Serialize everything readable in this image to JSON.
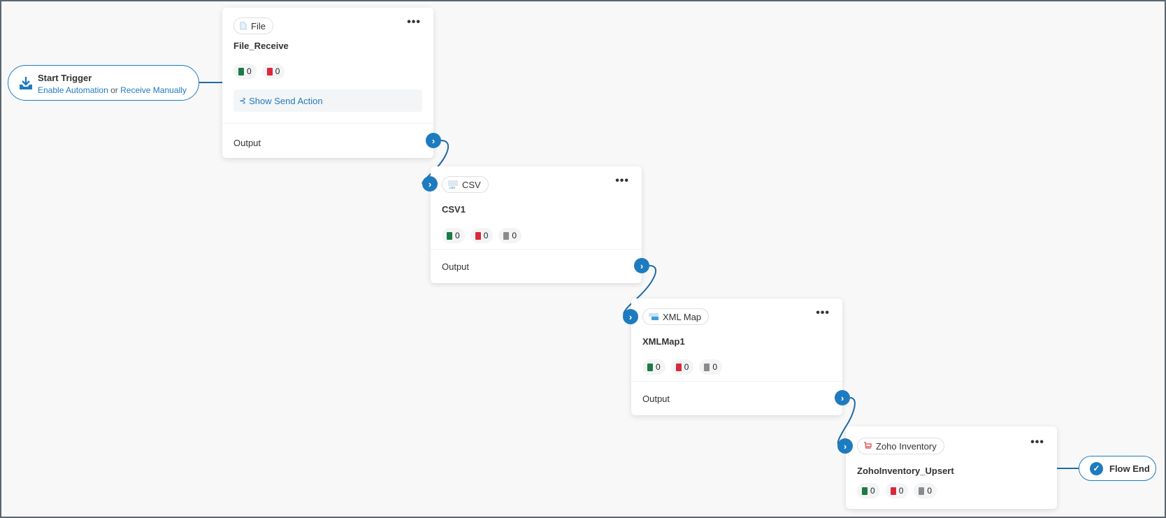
{
  "colors": {
    "accent": "#1e7bbf",
    "success": "#1e7a45",
    "error": "#d9283b",
    "neutral": "#8a8a8a"
  },
  "start_trigger": {
    "title": "Start Trigger",
    "link1": "Enable Automation",
    "sep": "or",
    "link2": "Receive Manually",
    "icon": "download-icon"
  },
  "flow_end": {
    "label": "Flow End",
    "icon": "check-circle-icon"
  },
  "nodes": [
    {
      "type": "File",
      "name": "File_Receive",
      "icon": "file-icon",
      "stats": {
        "success": "0",
        "error": "0"
      },
      "send_action": "Show Send Action",
      "output": "Output"
    },
    {
      "type": "CSV",
      "name": "CSV1",
      "icon": "csv-icon",
      "stats": {
        "success": "0",
        "error": "0",
        "pending": "0"
      },
      "output": "Output"
    },
    {
      "type": "XML Map",
      "name": "XMLMap1",
      "icon": "xml-map-icon",
      "stats": {
        "success": "0",
        "error": "0",
        "pending": "0"
      },
      "output": "Output"
    },
    {
      "type": "Zoho Inventory",
      "name": "ZohoInventory_Upsert",
      "icon": "zoho-inventory-icon",
      "stats": {
        "success": "0",
        "error": "0",
        "pending": "0"
      }
    }
  ],
  "menu_icon": "more-horizontal-icon"
}
